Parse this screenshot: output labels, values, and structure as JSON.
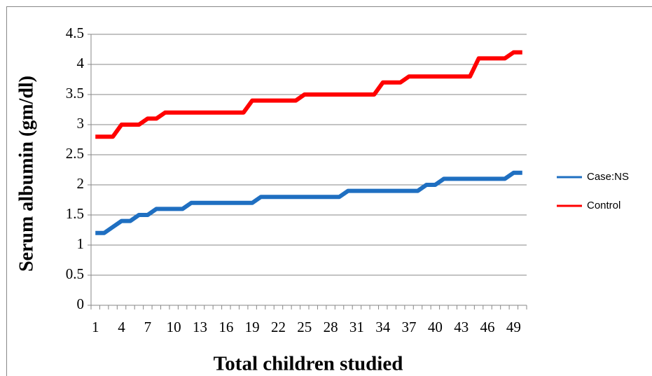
{
  "chart_data": {
    "type": "line",
    "x_label": "Total children studied",
    "y_label": "Serum albumin (gm/dl)",
    "categories": [
      1,
      null,
      null,
      4,
      null,
      null,
      7,
      null,
      null,
      10,
      null,
      null,
      13,
      null,
      null,
      16,
      null,
      null,
      19,
      null,
      null,
      22,
      null,
      null,
      25,
      null,
      null,
      28,
      null,
      null,
      31,
      null,
      null,
      34,
      null,
      null,
      37,
      null,
      null,
      40,
      null,
      null,
      43,
      null,
      null,
      46,
      null,
      null,
      49,
      null
    ],
    "series": [
      {
        "name": "Case:NS",
        "color": "#1f6fc1",
        "values": [
          1.2,
          1.2,
          1.3,
          1.4,
          1.4,
          1.5,
          1.5,
          1.6,
          1.6,
          1.6,
          1.6,
          1.7,
          1.7,
          1.7,
          1.7,
          1.7,
          1.7,
          1.7,
          1.7,
          1.8,
          1.8,
          1.8,
          1.8,
          1.8,
          1.8,
          1.8,
          1.8,
          1.8,
          1.8,
          1.9,
          1.9,
          1.9,
          1.9,
          1.9,
          1.9,
          1.9,
          1.9,
          1.9,
          2.0,
          2.0,
          2.1,
          2.1,
          2.1,
          2.1,
          2.1,
          2.1,
          2.1,
          2.1,
          2.2,
          2.2
        ]
      },
      {
        "name": "Control",
        "color": "#ff0000",
        "values": [
          2.8,
          2.8,
          2.8,
          3.0,
          3.0,
          3.0,
          3.1,
          3.1,
          3.2,
          3.2,
          3.2,
          3.2,
          3.2,
          3.2,
          3.2,
          3.2,
          3.2,
          3.2,
          3.4,
          3.4,
          3.4,
          3.4,
          3.4,
          3.4,
          3.5,
          3.5,
          3.5,
          3.5,
          3.5,
          3.5,
          3.5,
          3.5,
          3.5,
          3.7,
          3.7,
          3.7,
          3.8,
          3.8,
          3.8,
          3.8,
          3.8,
          3.8,
          3.8,
          3.8,
          4.1,
          4.1,
          4.1,
          4.1,
          4.2,
          4.2
        ]
      }
    ],
    "ylim": [
      0,
      4.5
    ],
    "yticks": [
      0,
      0.5,
      1,
      1.5,
      2,
      2.5,
      3,
      3.5,
      4,
      4.5
    ],
    "grid": true,
    "legend": "right"
  }
}
